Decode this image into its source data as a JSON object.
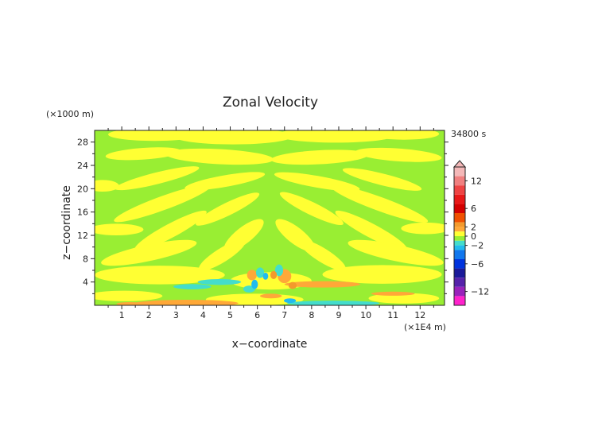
{
  "chart_data": {
    "type": "heatmap",
    "title": "Zonal Velocity",
    "xlabel": "x−coordinate",
    "ylabel": "z−coordinate",
    "x_unit": "(×1E4 m)",
    "y_unit": "(×1000 m)",
    "time_label": "34800 s",
    "xlim": [
      0,
      12.9
    ],
    "ylim": [
      0,
      30
    ],
    "x_ticks": [
      "1",
      "2",
      "3",
      "4",
      "5",
      "6",
      "7",
      "8",
      "9",
      "10",
      "11",
      "12"
    ],
    "y_ticks": [
      "4",
      "8",
      "12",
      "16",
      "20",
      "24",
      "28"
    ],
    "colorbar": {
      "min": -15,
      "max": 15,
      "tick_labels": [
        "12",
        "6",
        "2",
        "0",
        "−2",
        "−6",
        "−12"
      ],
      "tick_values": [
        12,
        6,
        2,
        0,
        -2,
        -6,
        -12
      ],
      "levels": [
        {
          "lo": 13,
          "hi": 15,
          "color": "#f4b8b8"
        },
        {
          "lo": 11,
          "hi": 13,
          "color": "#f08080"
        },
        {
          "lo": 9,
          "hi": 11,
          "color": "#ee4444"
        },
        {
          "lo": 7,
          "hi": 9,
          "color": "#e81818"
        },
        {
          "lo": 5,
          "hi": 7,
          "color": "#d40000"
        },
        {
          "lo": 3,
          "hi": 5,
          "color": "#f05000"
        },
        {
          "lo": 2,
          "hi": 3,
          "color": "#f39a2c"
        },
        {
          "lo": 1,
          "hi": 2,
          "color": "#ffa838"
        },
        {
          "lo": 0,
          "hi": 1,
          "color": "#ffff33"
        },
        {
          "lo": -1,
          "hi": 0,
          "color": "#99ee33"
        },
        {
          "lo": -2,
          "hi": -1,
          "color": "#44ddcc"
        },
        {
          "lo": -3,
          "hi": -2,
          "color": "#22bbee"
        },
        {
          "lo": -5,
          "hi": -3,
          "color": "#1177ee"
        },
        {
          "lo": -7,
          "hi": -5,
          "color": "#0033dd"
        },
        {
          "lo": -9,
          "hi": -7,
          "color": "#1a1a99"
        },
        {
          "lo": -11,
          "hi": -9,
          "color": "#5522aa"
        },
        {
          "lo": -13,
          "hi": -11,
          "color": "#9922bb"
        },
        {
          "lo": -15,
          "hi": -13,
          "color": "#ff22cc"
        }
      ]
    },
    "background_color": "#99ee33",
    "regions": [
      {
        "value": 0.5,
        "x": 0.3,
        "z": 20.5,
        "rx": 0.6,
        "rz": 1.0,
        "rot": 0
      },
      {
        "value": 0.5,
        "x": 2.2,
        "z": 29.3,
        "rx": 1.7,
        "rz": 1.1,
        "rot": 0
      },
      {
        "value": 0.5,
        "x": 5.1,
        "z": 29.0,
        "rx": 2.2,
        "rz": 1.4,
        "rot": 0
      },
      {
        "value": 0.5,
        "x": 8.9,
        "z": 29.2,
        "rx": 2.2,
        "rz": 1.3,
        "rot": 0
      },
      {
        "value": 0.5,
        "x": 11.4,
        "z": 29.4,
        "rx": 1.3,
        "rz": 1.0,
        "rot": 0
      },
      {
        "value": 0.5,
        "x": 1.8,
        "z": 26.0,
        "rx": 1.4,
        "rz": 1.0,
        "rot": 4
      },
      {
        "value": 0.5,
        "x": 4.6,
        "z": 25.5,
        "rx": 2.0,
        "rz": 1.3,
        "rot": -3
      },
      {
        "value": 0.5,
        "x": 8.3,
        "z": 25.4,
        "rx": 1.8,
        "rz": 1.2,
        "rot": 3
      },
      {
        "value": 0.5,
        "x": 11.2,
        "z": 25.8,
        "rx": 1.6,
        "rz": 1.1,
        "rot": -4
      },
      {
        "value": 0.5,
        "x": 2.3,
        "z": 21.8,
        "rx": 1.6,
        "rz": 1.0,
        "rot": 14
      },
      {
        "value": 0.5,
        "x": 4.8,
        "z": 21.3,
        "rx": 1.5,
        "rz": 1.0,
        "rot": 10
      },
      {
        "value": 0.5,
        "x": 8.2,
        "z": 21.2,
        "rx": 1.6,
        "rz": 1.0,
        "rot": -10
      },
      {
        "value": 0.5,
        "x": 10.6,
        "z": 21.6,
        "rx": 1.5,
        "rz": 1.0,
        "rot": -14
      },
      {
        "value": 0.5,
        "x": 2.5,
        "z": 17.5,
        "rx": 1.9,
        "rz": 1.2,
        "rot": 20
      },
      {
        "value": 0.5,
        "x": 4.9,
        "z": 16.5,
        "rx": 1.3,
        "rz": 1.1,
        "rot": 26
      },
      {
        "value": 0.5,
        "x": 8.0,
        "z": 16.6,
        "rx": 1.3,
        "rz": 1.1,
        "rot": -26
      },
      {
        "value": 0.5,
        "x": 10.5,
        "z": 17.4,
        "rx": 1.9,
        "rz": 1.2,
        "rot": -20
      },
      {
        "value": 0.5,
        "x": 0.8,
        "z": 13.0,
        "rx": 1.0,
        "rz": 1.0,
        "rot": 0
      },
      {
        "value": 0.5,
        "x": 2.8,
        "z": 12.8,
        "rx": 1.5,
        "rz": 1.2,
        "rot": 28
      },
      {
        "value": 0.5,
        "x": 5.5,
        "z": 12.0,
        "rx": 0.9,
        "rz": 1.4,
        "rot": 38
      },
      {
        "value": 0.5,
        "x": 7.4,
        "z": 12.0,
        "rx": 0.9,
        "rz": 1.4,
        "rot": -38
      },
      {
        "value": 0.5,
        "x": 10.2,
        "z": 12.8,
        "rx": 1.5,
        "rz": 1.2,
        "rot": -28
      },
      {
        "value": 0.5,
        "x": 12.2,
        "z": 13.2,
        "rx": 0.9,
        "rz": 1.0,
        "rot": 0
      },
      {
        "value": 0.5,
        "x": 2.0,
        "z": 9.0,
        "rx": 1.8,
        "rz": 1.4,
        "rot": 12
      },
      {
        "value": 0.5,
        "x": 4.7,
        "z": 8.6,
        "rx": 1.0,
        "rz": 1.2,
        "rot": 32
      },
      {
        "value": 0.5,
        "x": 8.4,
        "z": 8.6,
        "rx": 1.0,
        "rz": 1.2,
        "rot": -32
      },
      {
        "value": 0.5,
        "x": 11.1,
        "z": 9.0,
        "rx": 1.8,
        "rz": 1.4,
        "rot": -12
      },
      {
        "value": 0.5,
        "x": 2.4,
        "z": 5.2,
        "rx": 2.4,
        "rz": 1.6,
        "rot": 0
      },
      {
        "value": 0.5,
        "x": 10.6,
        "z": 5.3,
        "rx": 2.2,
        "rz": 1.6,
        "rot": 0
      },
      {
        "value": 0.5,
        "x": 6.5,
        "z": 4.2,
        "rx": 1.5,
        "rz": 1.5,
        "rot": 0
      },
      {
        "value": 0.5,
        "x": 1.1,
        "z": 1.6,
        "rx": 1.4,
        "rz": 0.9,
        "rot": 0
      },
      {
        "value": 0.5,
        "x": 5.9,
        "z": 1.0,
        "rx": 1.8,
        "rz": 1.0,
        "rot": 0
      },
      {
        "value": 0.5,
        "x": 11.4,
        "z": 1.2,
        "rx": 1.3,
        "rz": 0.9,
        "rot": 0
      },
      {
        "value": 1.5,
        "x": 3.4,
        "z": 0.35,
        "rx": 1.9,
        "rz": 0.6,
        "rot": 0
      },
      {
        "value": 1.5,
        "x": 1.3,
        "z": 0.25,
        "rx": 0.5,
        "rz": 0.3,
        "rot": 0
      },
      {
        "value": 1.5,
        "x": 8.4,
        "z": 3.6,
        "rx": 1.4,
        "rz": 0.55,
        "rot": 0
      },
      {
        "value": 1.5,
        "x": 11.0,
        "z": 2.0,
        "rx": 0.8,
        "rz": 0.35,
        "rot": 0
      },
      {
        "value": 1.5,
        "x": 7.0,
        "z": 5.0,
        "rx": 0.25,
        "rz": 1.2,
        "rot": 0
      },
      {
        "value": 1.5,
        "x": 5.8,
        "z": 5.2,
        "rx": 0.18,
        "rz": 0.9,
        "rot": 0
      },
      {
        "value": 1.5,
        "x": 6.5,
        "z": 1.6,
        "rx": 0.4,
        "rz": 0.4,
        "rot": 0
      },
      {
        "value": -1.5,
        "x": 3.6,
        "z": 3.2,
        "rx": 0.7,
        "rz": 0.45,
        "rot": 0
      },
      {
        "value": -1.5,
        "x": 4.6,
        "z": 4.0,
        "rx": 0.8,
        "rz": 0.5,
        "rot": 0
      },
      {
        "value": -1.5,
        "x": 8.8,
        "z": 0.35,
        "rx": 1.7,
        "rz": 0.45,
        "rot": 0
      },
      {
        "value": -1.5,
        "x": 5.7,
        "z": 2.8,
        "rx": 0.22,
        "rz": 0.6,
        "rot": 0
      },
      {
        "value": -1.5,
        "x": 6.1,
        "z": 5.6,
        "rx": 0.15,
        "rz": 0.9,
        "rot": 0
      },
      {
        "value": -1.5,
        "x": 6.8,
        "z": 6.0,
        "rx": 0.15,
        "rz": 1.0,
        "rot": 0
      },
      {
        "value": -2.5,
        "x": 5.9,
        "z": 3.6,
        "rx": 0.12,
        "rz": 0.8,
        "rot": 0
      },
      {
        "value": -2.5,
        "x": 7.2,
        "z": 0.8,
        "rx": 0.22,
        "rz": 0.4,
        "rot": 0
      },
      {
        "value": -2.5,
        "x": 6.3,
        "z": 5.0,
        "rx": 0.1,
        "rz": 0.6,
        "rot": 0
      },
      {
        "value": 2.5,
        "x": 6.6,
        "z": 5.2,
        "rx": 0.12,
        "rz": 0.7,
        "rot": 0
      },
      {
        "value": 2.5,
        "x": 7.3,
        "z": 3.4,
        "rx": 0.15,
        "rz": 0.6,
        "rot": 0
      }
    ]
  }
}
